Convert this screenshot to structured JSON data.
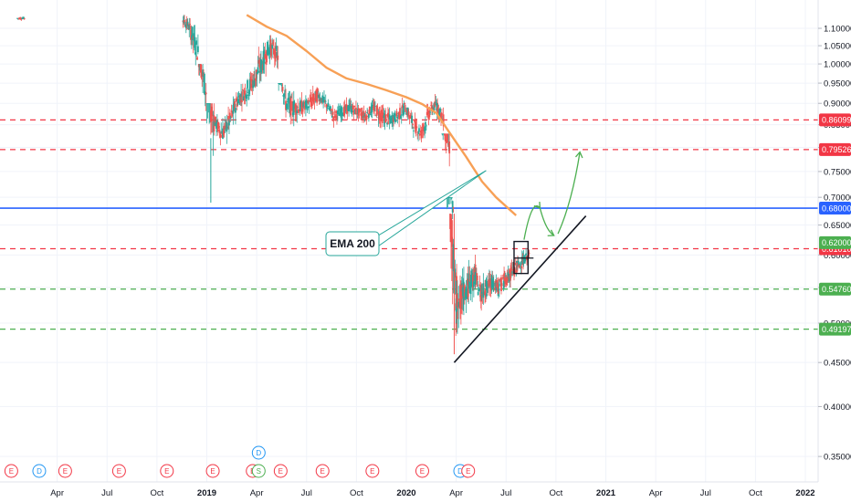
{
  "chart_data": {
    "type": "candlestick",
    "y_scale": "log",
    "ylim": [
      0.33,
      1.14
    ],
    "y_ticks": [
      "1.10000",
      "1.05000",
      "1.00000",
      "0.95000",
      "0.90000",
      "0.85000",
      "0.80000",
      "0.75000",
      "0.70000",
      "0.65000",
      "0.60000",
      "0.55000",
      "0.50000",
      "0.45000",
      "0.40000",
      "0.35000"
    ],
    "x_ticks": [
      {
        "label": "Apr",
        "t": 2018.25,
        "year": false
      },
      {
        "label": "Jul",
        "t": 2018.5,
        "year": false
      },
      {
        "label": "Oct",
        "t": 2018.75,
        "year": false
      },
      {
        "label": "2019",
        "t": 2019.0,
        "year": true
      },
      {
        "label": "Apr",
        "t": 2019.25,
        "year": false
      },
      {
        "label": "Jul",
        "t": 2019.5,
        "year": false
      },
      {
        "label": "Oct",
        "t": 2019.75,
        "year": false
      },
      {
        "label": "2020",
        "t": 2020.0,
        "year": true
      },
      {
        "label": "Apr",
        "t": 2020.25,
        "year": false
      },
      {
        "label": "Jul",
        "t": 2020.5,
        "year": false
      },
      {
        "label": "Oct",
        "t": 2020.75,
        "year": false
      },
      {
        "label": "2021",
        "t": 2021.0,
        "year": true
      },
      {
        "label": "Apr",
        "t": 2021.25,
        "year": false
      },
      {
        "label": "Jul",
        "t": 2021.5,
        "year": false
      },
      {
        "label": "Oct",
        "t": 2021.75,
        "year": false
      },
      {
        "label": "2022",
        "t": 2022.0,
        "year": true
      }
    ],
    "horizontal_levels": [
      {
        "price": 0.86099,
        "label": "0.86099",
        "style": "dashed",
        "color": "#f23645"
      },
      {
        "price": 0.79526,
        "label": "0.79526",
        "style": "dashed",
        "color": "#f23645"
      },
      {
        "price": 0.68,
        "label": "0.68000",
        "style": "solid",
        "color": "#2962ff"
      },
      {
        "price": 0.6101,
        "label": "0.61010",
        "style": "dashed",
        "color": "#f23645"
      },
      {
        "price": 0.5476,
        "label": "0.54760",
        "style": "dashed",
        "color": "#4caf50"
      },
      {
        "price": 0.49197,
        "label": "0.49197",
        "style": "dashed",
        "color": "#4caf50"
      }
    ],
    "current_price_tag": {
      "price": 0.62,
      "label": "0.62000",
      "color": "#4caf50"
    },
    "ema": {
      "label": "EMA 200",
      "color": "#f7a056",
      "points": [
        [
          2019.2,
          1.14
        ],
        [
          2019.3,
          1.105
        ],
        [
          2019.4,
          1.078
        ],
        [
          2019.5,
          1.035
        ],
        [
          2019.6,
          0.99
        ],
        [
          2019.7,
          0.962
        ],
        [
          2019.8,
          0.948
        ],
        [
          2019.9,
          0.932
        ],
        [
          2020.0,
          0.915
        ],
        [
          2020.08,
          0.898
        ],
        [
          2020.15,
          0.877
        ],
        [
          2020.22,
          0.83
        ],
        [
          2020.3,
          0.78
        ],
        [
          2020.38,
          0.73
        ],
        [
          2020.45,
          0.7
        ],
        [
          2020.55,
          0.667
        ]
      ]
    },
    "candles_close": [
      [
        2018.07,
        1.13
      ],
      [
        2018.9,
        1.1
      ],
      [
        2018.94,
        1.03
      ],
      [
        2018.98,
        0.93
      ],
      [
        2019.02,
        0.86
      ],
      [
        2019.06,
        0.83
      ],
      [
        2019.1,
        0.86
      ],
      [
        2019.14,
        0.91
      ],
      [
        2019.18,
        0.93
      ],
      [
        2019.22,
        0.96
      ],
      [
        2019.26,
        1.0
      ],
      [
        2019.3,
        1.05
      ],
      [
        2019.34,
        1.02
      ],
      [
        2019.38,
        0.9
      ],
      [
        2019.42,
        0.89
      ],
      [
        2019.46,
        0.89
      ],
      [
        2019.5,
        0.9
      ],
      [
        2019.54,
        0.92
      ],
      [
        2019.58,
        0.9
      ],
      [
        2019.62,
        0.87
      ],
      [
        2019.66,
        0.88
      ],
      [
        2019.7,
        0.89
      ],
      [
        2019.74,
        0.88
      ],
      [
        2019.78,
        0.87
      ],
      [
        2019.82,
        0.89
      ],
      [
        2019.86,
        0.87
      ],
      [
        2019.9,
        0.86
      ],
      [
        2019.94,
        0.87
      ],
      [
        2019.98,
        0.89
      ],
      [
        2020.02,
        0.85
      ],
      [
        2020.06,
        0.83
      ],
      [
        2020.1,
        0.88
      ],
      [
        2020.14,
        0.9
      ],
      [
        2020.17,
        0.86
      ],
      [
        2020.2,
        0.8
      ],
      [
        2020.22,
        0.67
      ],
      [
        2020.24,
        0.52
      ],
      [
        2020.27,
        0.54
      ],
      [
        2020.3,
        0.55
      ],
      [
        2020.33,
        0.57
      ],
      [
        2020.36,
        0.54
      ],
      [
        2020.39,
        0.55
      ],
      [
        2020.42,
        0.56
      ],
      [
        2020.45,
        0.55
      ],
      [
        2020.48,
        0.56
      ],
      [
        2020.51,
        0.57
      ],
      [
        2020.54,
        0.58
      ],
      [
        2020.57,
        0.59
      ],
      [
        2020.6,
        0.6
      ]
    ],
    "candles_low": [
      [
        2018.07,
        1.12
      ],
      [
        2018.9,
        1.05
      ],
      [
        2018.94,
        0.95
      ],
      [
        2018.98,
        0.82
      ],
      [
        2019.02,
        0.69
      ],
      [
        2019.06,
        0.79
      ],
      [
        2019.1,
        0.8
      ],
      [
        2019.14,
        0.85
      ],
      [
        2019.18,
        0.88
      ],
      [
        2019.22,
        0.88
      ],
      [
        2019.26,
        0.9
      ],
      [
        2019.3,
        0.96
      ],
      [
        2019.34,
        0.95
      ],
      [
        2019.38,
        0.82
      ],
      [
        2019.42,
        0.8
      ],
      [
        2019.46,
        0.83
      ],
      [
        2019.5,
        0.86
      ],
      [
        2019.54,
        0.87
      ],
      [
        2019.58,
        0.87
      ],
      [
        2019.62,
        0.84
      ],
      [
        2019.66,
        0.85
      ],
      [
        2019.7,
        0.86
      ],
      [
        2019.74,
        0.85
      ],
      [
        2019.78,
        0.84
      ],
      [
        2019.82,
        0.85
      ],
      [
        2019.86,
        0.82
      ],
      [
        2019.9,
        0.81
      ],
      [
        2019.94,
        0.83
      ],
      [
        2019.98,
        0.84
      ],
      [
        2020.02,
        0.81
      ],
      [
        2020.06,
        0.8
      ],
      [
        2020.1,
        0.82
      ],
      [
        2020.14,
        0.86
      ],
      [
        2020.17,
        0.82
      ],
      [
        2020.2,
        0.72
      ],
      [
        2020.22,
        0.6
      ],
      [
        2020.24,
        0.45
      ],
      [
        2020.27,
        0.49
      ],
      [
        2020.3,
        0.5
      ],
      [
        2020.33,
        0.52
      ],
      [
        2020.36,
        0.5
      ],
      [
        2020.39,
        0.52
      ],
      [
        2020.42,
        0.53
      ],
      [
        2020.45,
        0.53
      ],
      [
        2020.48,
        0.54
      ],
      [
        2020.51,
        0.55
      ],
      [
        2020.54,
        0.56
      ],
      [
        2020.57,
        0.57
      ],
      [
        2020.6,
        0.58
      ]
    ],
    "candles_high": [
      [
        2018.07,
        1.14
      ],
      [
        2018.9,
        1.14
      ],
      [
        2018.94,
        1.11
      ],
      [
        2018.98,
        1.0
      ],
      [
        2019.02,
        0.9
      ],
      [
        2019.06,
        0.88
      ],
      [
        2019.1,
        0.91
      ],
      [
        2019.14,
        0.96
      ],
      [
        2019.18,
        0.98
      ],
      [
        2019.22,
        1.02
      ],
      [
        2019.26,
        1.06
      ],
      [
        2019.3,
        1.11
      ],
      [
        2019.34,
        1.08
      ],
      [
        2019.38,
        0.95
      ],
      [
        2019.42,
        0.93
      ],
      [
        2019.46,
        0.93
      ],
      [
        2019.5,
        0.94
      ],
      [
        2019.54,
        0.97
      ],
      [
        2019.58,
        0.94
      ],
      [
        2019.62,
        0.91
      ],
      [
        2019.66,
        0.92
      ],
      [
        2019.7,
        0.93
      ],
      [
        2019.74,
        0.92
      ],
      [
        2019.78,
        0.9
      ],
      [
        2019.82,
        0.92
      ],
      [
        2019.86,
        0.91
      ],
      [
        2019.9,
        0.9
      ],
      [
        2019.94,
        0.9
      ],
      [
        2019.98,
        0.92
      ],
      [
        2020.02,
        0.89
      ],
      [
        2020.06,
        0.88
      ],
      [
        2020.1,
        0.92
      ],
      [
        2020.14,
        0.93
      ],
      [
        2020.17,
        0.9
      ],
      [
        2020.2,
        0.83
      ],
      [
        2020.22,
        0.7
      ],
      [
        2020.24,
        0.67
      ],
      [
        2020.27,
        0.62
      ],
      [
        2020.3,
        0.6
      ],
      [
        2020.33,
        0.62
      ],
      [
        2020.36,
        0.58
      ],
      [
        2020.39,
        0.59
      ],
      [
        2020.42,
        0.6
      ],
      [
        2020.45,
        0.58
      ],
      [
        2020.48,
        0.6
      ],
      [
        2020.51,
        0.61
      ],
      [
        2020.54,
        0.62
      ],
      [
        2020.57,
        0.62
      ],
      [
        2020.6,
        0.62
      ]
    ],
    "trendline": {
      "from": [
        2020.24,
        0.45
      ],
      "to": [
        2020.9,
        0.666
      ],
      "color": "#131722"
    },
    "projection_arrows": [
      {
        "from": [
          2020.59,
          0.625
        ],
        "ctrl": [
          2020.63,
          0.7
        ],
        "to": [
          2020.67,
          0.68
        ],
        "color": "#4caf50"
      },
      {
        "from": [
          2020.67,
          0.68
        ],
        "ctrl": [
          2020.7,
          0.64
        ],
        "to": [
          2020.74,
          0.632
        ],
        "color": "#4caf50"
      },
      {
        "from": [
          2020.76,
          0.635
        ],
        "ctrl": [
          2020.83,
          0.69
        ],
        "to": [
          2020.87,
          0.79
        ],
        "color": "#4caf50"
      }
    ],
    "box": {
      "t0": 2020.54,
      "t1": 2020.61,
      "p0": 0.571,
      "p1": 0.622
    },
    "events": [
      {
        "t": 2018.02,
        "label": "E",
        "color": "#f23645",
        "row": 0
      },
      {
        "t": 2018.16,
        "label": "D",
        "color": "#2196f3",
        "row": 0
      },
      {
        "t": 2018.29,
        "label": "E",
        "color": "#f23645",
        "row": 0
      },
      {
        "t": 2018.56,
        "label": "E",
        "color": "#f23645",
        "row": 0
      },
      {
        "t": 2018.8,
        "label": "E",
        "color": "#f23645",
        "row": 0
      },
      {
        "t": 2019.03,
        "label": "E",
        "color": "#f23645",
        "row": 0
      },
      {
        "t": 2019.23,
        "label": "E",
        "color": "#f23645",
        "row": 0
      },
      {
        "t": 2019.26,
        "label": "D",
        "color": "#2196f3",
        "row": 1
      },
      {
        "t": 2019.26,
        "label": "S",
        "color": "#4caf50",
        "row": 0
      },
      {
        "t": 2019.37,
        "label": "E",
        "color": "#f23645",
        "row": 0
      },
      {
        "t": 2019.58,
        "label": "E",
        "color": "#f23645",
        "row": 0
      },
      {
        "t": 2019.83,
        "label": "E",
        "color": "#f23645",
        "row": 0
      },
      {
        "t": 2020.08,
        "label": "E",
        "color": "#f23645",
        "row": 0
      },
      {
        "t": 2020.27,
        "label": "D",
        "color": "#2196f3",
        "row": 0
      },
      {
        "t": 2020.31,
        "label": "E",
        "color": "#f23645",
        "row": 0
      }
    ]
  }
}
